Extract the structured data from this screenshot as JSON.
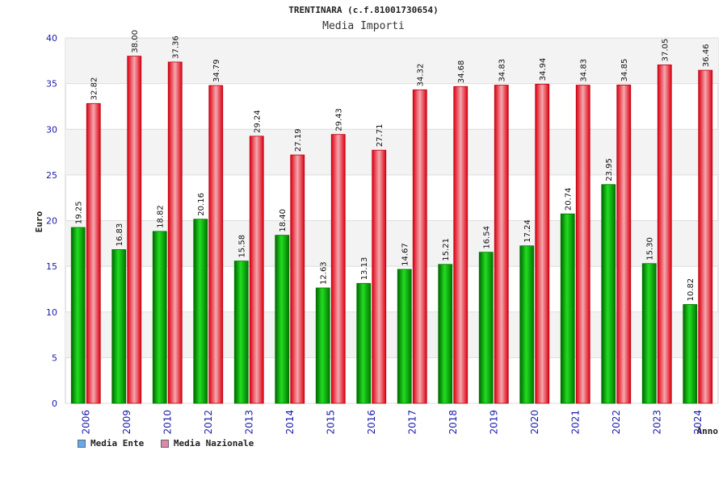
{
  "chart_data": {
    "type": "bar",
    "title": "TRENTINARA (c.f.81001730654)",
    "subtitle": "Media Importi",
    "xlabel": "Anno",
    "ylabel": "Euro",
    "ylim": [
      0,
      40
    ],
    "yticks": [
      0,
      5,
      10,
      15,
      20,
      25,
      30,
      35,
      40
    ],
    "categories": [
      "2006",
      "2009",
      "2010",
      "2012",
      "2013",
      "2014",
      "2015",
      "2016",
      "2017",
      "2018",
      "2019",
      "2020",
      "2021",
      "2022",
      "2023",
      "2024"
    ],
    "series": [
      {
        "name": "Media Ente",
        "values": [
          19.25,
          16.83,
          18.82,
          20.16,
          15.58,
          18.4,
          12.63,
          13.13,
          14.67,
          15.21,
          16.54,
          17.24,
          20.74,
          23.95,
          15.3,
          10.82
        ],
        "labels": [
          "19.25",
          "16.83",
          "18.82",
          "20.16",
          "15.58",
          "18.40",
          "12.63",
          "13.13",
          "14.67",
          "15.21",
          "16.54",
          "17.24",
          "20.74",
          "23.95",
          "15.30",
          "10.82"
        ],
        "bar_color": "#00bb00",
        "legend_color": "#66aaee"
      },
      {
        "name": "Media Nazionale",
        "values": [
          32.82,
          38.0,
          37.36,
          34.79,
          29.24,
          27.19,
          29.43,
          27.71,
          34.32,
          34.68,
          34.83,
          34.94,
          34.83,
          34.85,
          37.05,
          36.46
        ],
        "labels": [
          "32.82",
          "38.00",
          "37.36",
          "34.79",
          "29.24",
          "27.19",
          "29.43",
          "27.71",
          "34.32",
          "34.68",
          "34.83",
          "34.94",
          "34.83",
          "34.85",
          "37.05",
          "36.46"
        ],
        "bar_color": "#ee2233",
        "legend_color": "#dd88aa"
      }
    ]
  }
}
